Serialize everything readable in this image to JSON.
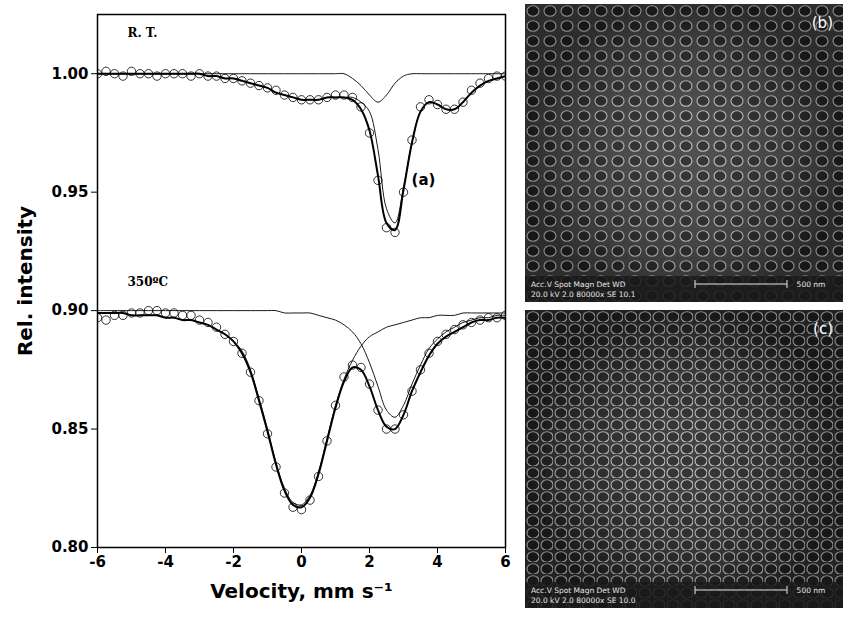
{
  "chart_data": {
    "type": "line",
    "x_label": "Velocity, mm s⁻¹",
    "y_label": "Rel. intensity",
    "panel_label": "(a)",
    "marker": "circle",
    "color": "#000000",
    "xlim": [
      -6,
      6
    ],
    "xticks": [
      -6,
      -4,
      -2,
      0,
      2,
      4,
      6
    ],
    "ylim": [
      0.8,
      1.025
    ],
    "yticks": [
      {
        "value": 0.8,
        "label": "0.80"
      },
      0.85,
      {
        "value": 0.9,
        "label": "0.90"
      },
      0.95,
      {
        "value": 1.0,
        "label": "1.00"
      }
    ],
    "grid": false,
    "x": [
      -6,
      -5.75,
      -5.5,
      -5.25,
      -5,
      -4.75,
      -4.5,
      -4.25,
      -4,
      -3.75,
      -3.5,
      -3.25,
      -3,
      -2.75,
      -2.5,
      -2.25,
      -2,
      -1.75,
      -1.5,
      -1.25,
      -1,
      -0.75,
      -0.5,
      -0.25,
      0,
      0.25,
      0.5,
      0.75,
      1,
      1.25,
      1.5,
      1.75,
      2,
      2.25,
      2.5,
      2.75,
      3,
      3.25,
      3.5,
      3.75,
      4,
      4.25,
      4.5,
      4.75,
      5,
      5.25,
      5.5,
      5.75,
      6
    ],
    "spectra": [
      {
        "label": "R. T.",
        "values": [
          1.0,
          1.001,
          1.0,
          0.999,
          1.001,
          1.0,
          1.0,
          0.999,
          1.0,
          1.0,
          1.0,
          0.999,
          1.0,
          0.999,
          0.999,
          0.998,
          0.998,
          0.997,
          0.996,
          0.995,
          0.994,
          0.993,
          0.991,
          0.99,
          0.989,
          0.989,
          0.989,
          0.99,
          0.991,
          0.991,
          0.99,
          0.986,
          0.975,
          0.955,
          0.935,
          0.933,
          0.95,
          0.972,
          0.986,
          0.989,
          0.987,
          0.985,
          0.985,
          0.988,
          0.993,
          0.996,
          0.998,
          0.999,
          0.999
        ],
        "fit": [
          1.0,
          1.0,
          1.0,
          1.0,
          1.0,
          1.0,
          1.0,
          1.0,
          1.0,
          1.0,
          1.0,
          1.0,
          1.0,
          0.999,
          0.999,
          0.998,
          0.998,
          0.997,
          0.996,
          0.995,
          0.994,
          0.992,
          0.991,
          0.99,
          0.989,
          0.989,
          0.989,
          0.99,
          0.99,
          0.99,
          0.989,
          0.985,
          0.976,
          0.957,
          0.937,
          0.934,
          0.951,
          0.971,
          0.984,
          0.988,
          0.987,
          0.985,
          0.985,
          0.988,
          0.992,
          0.995,
          0.997,
          0.998,
          0.999
        ],
        "components": [
          [
            1.0,
            1.0,
            1.0,
            1.0,
            1.0,
            1.0,
            1.0,
            1.0,
            1.0,
            1.0,
            1.0,
            1.0,
            1.0,
            0.999,
            0.999,
            0.998,
            0.998,
            0.997,
            0.996,
            0.995,
            0.994,
            0.992,
            0.991,
            0.99,
            0.989,
            0.989,
            0.989,
            0.99,
            0.99,
            0.99,
            0.99,
            0.988,
            0.984,
            0.968,
            0.943,
            0.937,
            0.952,
            0.971,
            0.984,
            0.988,
            0.987,
            0.985,
            0.985,
            0.988,
            0.992,
            0.995,
            0.997,
            0.998,
            0.999
          ],
          [
            1.0,
            1.0,
            1.0,
            1.0,
            1.0,
            1.0,
            1.0,
            1.0,
            1.0,
            1.0,
            1.0,
            1.0,
            1.0,
            1.0,
            1.0,
            1.0,
            1.0,
            1.0,
            1.0,
            1.0,
            1.0,
            1.0,
            1.0,
            1.0,
            1.0,
            1.0,
            1.0,
            1.0,
            1.0,
            1.0,
            0.998,
            0.995,
            0.991,
            0.988,
            0.991,
            0.996,
            0.999,
            1.0,
            1.0,
            1.0,
            1.0,
            1.0,
            1.0,
            1.0,
            1.0,
            1.0,
            1.0,
            1.0,
            1.0
          ]
        ]
      },
      {
        "label": "350ºC",
        "values": [
          0.897,
          0.896,
          0.898,
          0.898,
          0.899,
          0.899,
          0.9,
          0.9,
          0.899,
          0.899,
          0.898,
          0.898,
          0.896,
          0.895,
          0.893,
          0.89,
          0.887,
          0.882,
          0.874,
          0.862,
          0.848,
          0.834,
          0.823,
          0.817,
          0.816,
          0.82,
          0.83,
          0.845,
          0.86,
          0.872,
          0.877,
          0.876,
          0.869,
          0.858,
          0.85,
          0.85,
          0.856,
          0.866,
          0.875,
          0.882,
          0.887,
          0.89,
          0.892,
          0.894,
          0.895,
          0.896,
          0.897,
          0.897,
          0.898
        ],
        "fit": [
          0.899,
          0.899,
          0.899,
          0.899,
          0.898,
          0.898,
          0.898,
          0.898,
          0.897,
          0.897,
          0.896,
          0.896,
          0.895,
          0.894,
          0.892,
          0.89,
          0.887,
          0.882,
          0.874,
          0.862,
          0.849,
          0.835,
          0.824,
          0.818,
          0.817,
          0.821,
          0.831,
          0.845,
          0.859,
          0.87,
          0.876,
          0.875,
          0.868,
          0.858,
          0.851,
          0.85,
          0.856,
          0.866,
          0.874,
          0.881,
          0.886,
          0.889,
          0.891,
          0.893,
          0.895,
          0.896,
          0.896,
          0.897,
          0.897
        ],
        "components": [
          [
            0.899,
            0.899,
            0.899,
            0.899,
            0.898,
            0.898,
            0.898,
            0.898,
            0.897,
            0.897,
            0.896,
            0.896,
            0.895,
            0.894,
            0.892,
            0.89,
            0.887,
            0.883,
            0.875,
            0.863,
            0.85,
            0.836,
            0.825,
            0.819,
            0.818,
            0.822,
            0.832,
            0.846,
            0.86,
            0.871,
            0.879,
            0.885,
            0.889,
            0.891,
            0.893,
            0.894,
            0.895,
            0.896,
            0.897,
            0.897,
            0.898,
            0.898,
            0.898,
            0.899,
            0.899,
            0.899,
            0.899,
            0.899,
            0.899
          ],
          [
            0.9,
            0.9,
            0.9,
            0.9,
            0.9,
            0.9,
            0.9,
            0.9,
            0.9,
            0.9,
            0.9,
            0.9,
            0.9,
            0.9,
            0.9,
            0.9,
            0.9,
            0.9,
            0.9,
            0.9,
            0.9,
            0.9,
            0.899,
            0.899,
            0.899,
            0.899,
            0.898,
            0.897,
            0.896,
            0.894,
            0.891,
            0.886,
            0.878,
            0.868,
            0.858,
            0.855,
            0.86,
            0.869,
            0.877,
            0.884,
            0.888,
            0.891,
            0.893,
            0.895,
            0.896,
            0.897,
            0.897,
            0.898,
            0.898
          ]
        ]
      }
    ]
  },
  "images": [
    {
      "label": "(b)",
      "info_header": "Acc.V  Spot Magn   Det  WD",
      "info_values": "20.0 kV 2.0  80000x  SE  10.1",
      "scale_bar": "500 nm"
    },
    {
      "label": "(c)",
      "info_header": "Acc.V  Spot Magn   Det  WD",
      "info_values": "20.0 kV 2.0  80000x  SE  10.0",
      "scale_bar": "500 nm"
    }
  ]
}
